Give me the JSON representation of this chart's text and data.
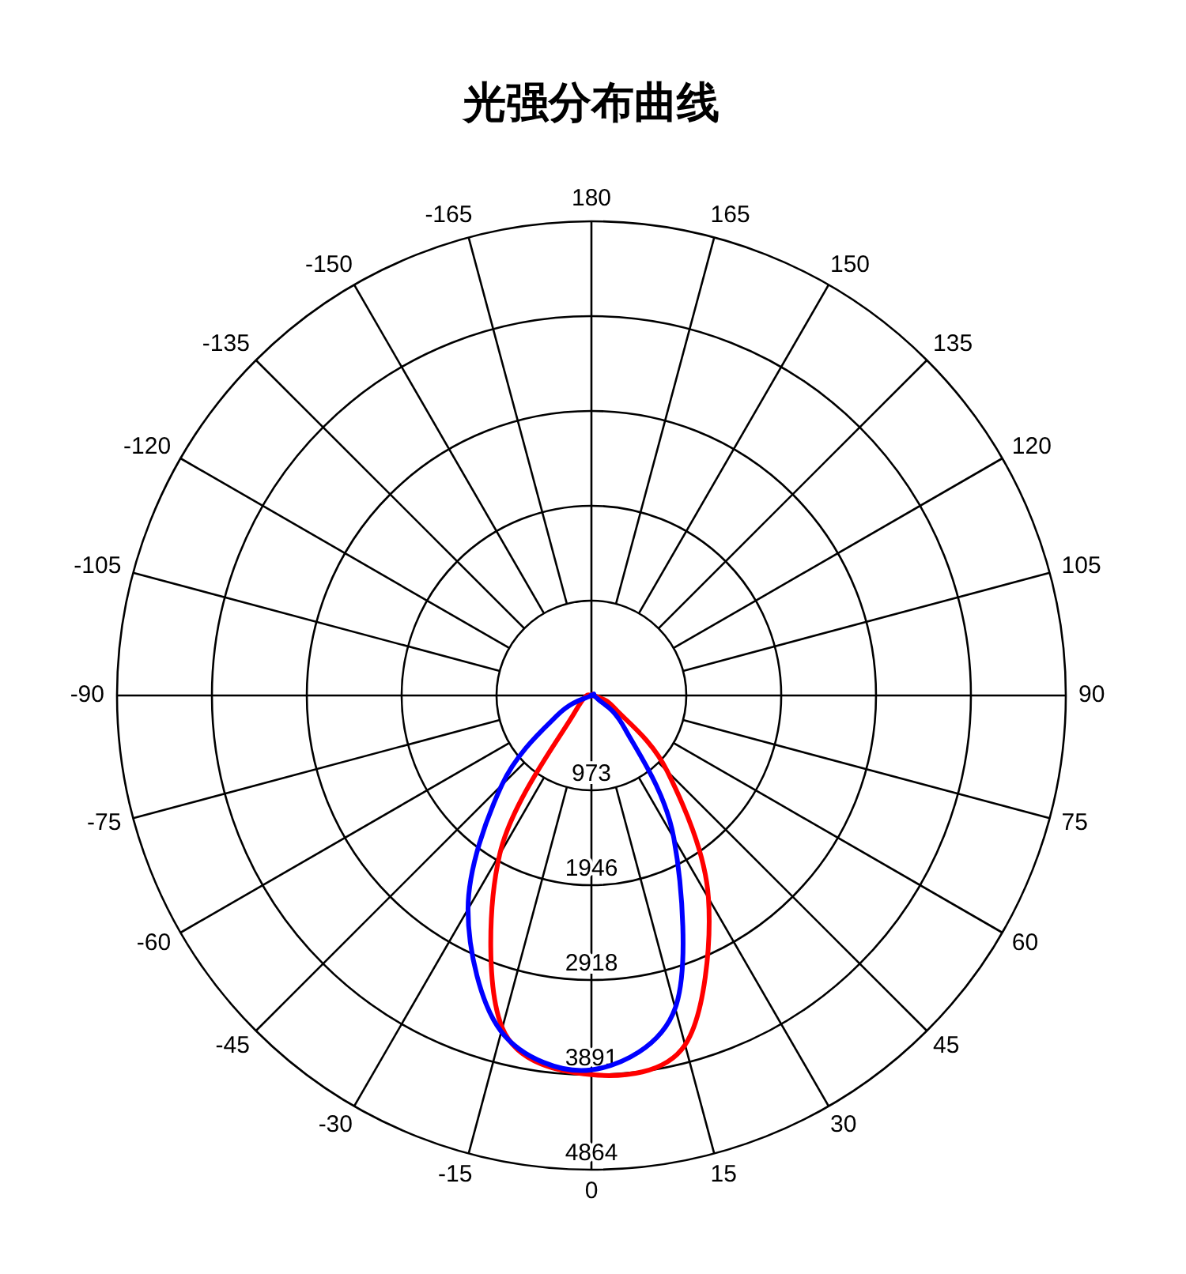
{
  "chart_data": {
    "type": "radar",
    "title": "光强分布曲线",
    "categories": [
      "180",
      "165",
      "150",
      "135",
      "120",
      "105",
      "90",
      "75",
      "60",
      "45",
      "30",
      "15",
      "0",
      "-15",
      "-30",
      "-45",
      "-60",
      "-75",
      "-90",
      "-105",
      "-120",
      "-135",
      "-150",
      "-165"
    ],
    "series": [
      {
        "color": "#ff0000",
        "values": [
          0,
          0,
          0,
          0,
          0,
          0,
          0,
          80,
          290,
          1100,
          2400,
          3710,
          3890,
          3530,
          1880,
          240,
          0,
          0,
          0,
          0,
          0,
          0,
          0,
          0
        ]
      },
      {
        "color": "#0000ff",
        "values": [
          0,
          0,
          0,
          0,
          0,
          0,
          0,
          0,
          80,
          490,
          1690,
          3320,
          3840,
          3570,
          2530,
          1300,
          400,
          0,
          0,
          0,
          0,
          0,
          0,
          0
        ]
      }
    ],
    "ylim": [
      0,
      4864
    ],
    "yticks": [
      973,
      1946,
      2918,
      3891,
      4864
    ],
    "grid": true
  }
}
